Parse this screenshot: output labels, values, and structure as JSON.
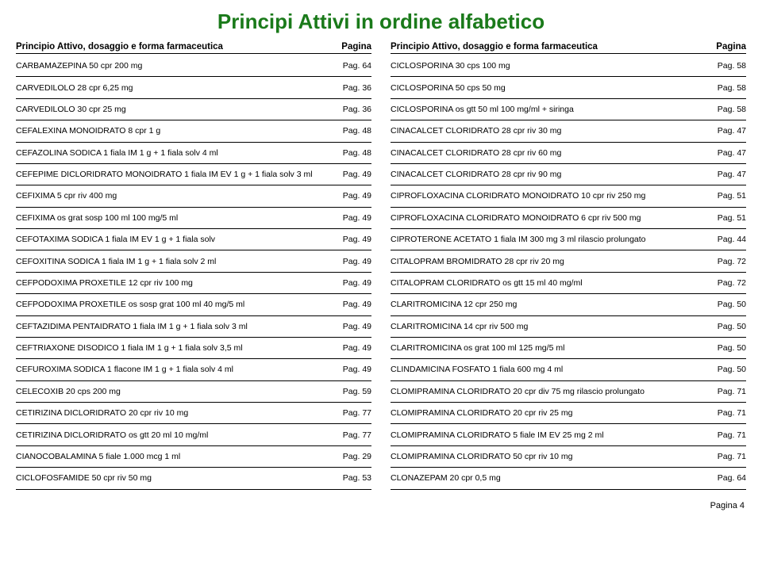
{
  "title": "Principi Attivi in ordine alfabetico",
  "header_left_label": "Principio Attivo, dosaggio e forma farmaceutica",
  "header_right_label": "Pagina",
  "footer": "Pagina 4",
  "colors": {
    "title": "#1a7a1a",
    "text": "#000000",
    "border": "#000000",
    "background": "#ffffff"
  },
  "left_items": [
    {
      "name": "CARBAMAZEPINA 50 cpr 200 mg",
      "page": "Pag. 64"
    },
    {
      "name": "CARVEDILOLO 28 cpr 6,25 mg",
      "page": "Pag. 36"
    },
    {
      "name": "CARVEDILOLO 30 cpr 25 mg",
      "page": "Pag. 36"
    },
    {
      "name": "CEFALEXINA MONOIDRATO 8 cpr 1 g",
      "page": "Pag. 48"
    },
    {
      "name": "CEFAZOLINA SODICA 1 fiala IM 1 g + 1 fiala solv 4 ml",
      "page": "Pag. 48"
    },
    {
      "name": "CEFEPIME DICLORIDRATO MONOIDRATO 1 fiala IM EV 1 g + 1 fiala solv 3 ml",
      "page": "Pag. 49"
    },
    {
      "name": "CEFIXIMA 5 cpr riv 400 mg",
      "page": "Pag. 49"
    },
    {
      "name": "CEFIXIMA os grat sosp 100 ml 100 mg/5 ml",
      "page": "Pag. 49"
    },
    {
      "name": "CEFOTAXIMA SODICA 1 fiala IM EV 1 g + 1 fiala solv",
      "page": "Pag. 49"
    },
    {
      "name": "CEFOXITINA SODICA 1 fiala IM 1 g + 1 fiala solv 2 ml",
      "page": "Pag. 49"
    },
    {
      "name": "CEFPODOXIMA PROXETILE 12 cpr riv 100 mg",
      "page": "Pag. 49"
    },
    {
      "name": "CEFPODOXIMA PROXETILE os sosp grat 100 ml 40 mg/5 ml",
      "page": "Pag. 49"
    },
    {
      "name": "CEFTAZIDIMA PENTAIDRATO 1 fiala IM 1 g + 1 fiala solv 3 ml",
      "page": "Pag. 49"
    },
    {
      "name": "CEFTRIAXONE DISODICO 1 fiala IM 1 g + 1 fiala solv 3,5 ml",
      "page": "Pag. 49"
    },
    {
      "name": "CEFUROXIMA SODICA 1 flacone IM 1 g + 1 fiala solv 4 ml",
      "page": "Pag. 49"
    },
    {
      "name": "CELECOXIB 20 cps 200 mg",
      "page": "Pag. 59"
    },
    {
      "name": "CETIRIZINA DICLORIDRATO 20 cpr riv 10 mg",
      "page": "Pag. 77"
    },
    {
      "name": "CETIRIZINA DICLORIDRATO os gtt 20 ml 10 mg/ml",
      "page": "Pag. 77"
    },
    {
      "name": "CIANOCOBALAMINA 5 fiale 1.000 mcg 1 ml",
      "page": "Pag. 29"
    },
    {
      "name": "CICLOFOSFAMIDE 50 cpr riv 50 mg",
      "page": "Pag. 53"
    }
  ],
  "right_items": [
    {
      "name": "CICLOSPORINA 30 cps 100 mg",
      "page": "Pag. 58"
    },
    {
      "name": "CICLOSPORINA 50 cps 50 mg",
      "page": "Pag. 58"
    },
    {
      "name": "CICLOSPORINA os gtt 50 ml 100 mg/ml + siringa",
      "page": "Pag. 58"
    },
    {
      "name": "CINACALCET CLORIDRATO 28 cpr riv 30 mg",
      "page": "Pag. 47"
    },
    {
      "name": "CINACALCET CLORIDRATO 28 cpr riv 60 mg",
      "page": "Pag. 47"
    },
    {
      "name": "CINACALCET CLORIDRATO 28 cpr riv 90 mg",
      "page": "Pag. 47"
    },
    {
      "name": "CIPROFLOXACINA CLORIDRATO MONOIDRATO 10 cpr riv 250 mg",
      "page": "Pag. 51"
    },
    {
      "name": "CIPROFLOXACINA CLORIDRATO MONOIDRATO 6 cpr riv 500 mg",
      "page": "Pag. 51"
    },
    {
      "name": "CIPROTERONE ACETATO 1 fiala IM 300 mg 3 ml rilascio prolungato",
      "page": "Pag. 44"
    },
    {
      "name": "CITALOPRAM BROMIDRATO 28 cpr riv 20 mg",
      "page": "Pag. 72"
    },
    {
      "name": "CITALOPRAM CLORIDRATO os gtt 15 ml 40 mg/ml",
      "page": "Pag. 72"
    },
    {
      "name": "CLARITROMICINA 12 cpr 250 mg",
      "page": "Pag. 50"
    },
    {
      "name": "CLARITROMICINA 14 cpr riv 500 mg",
      "page": "Pag. 50"
    },
    {
      "name": "CLARITROMICINA os grat 100 ml 125 mg/5 ml",
      "page": "Pag. 50"
    },
    {
      "name": "CLINDAMICINA FOSFATO 1 fiala 600 mg 4 ml",
      "page": "Pag. 50"
    },
    {
      "name": "CLOMIPRAMINA CLORIDRATO 20 cpr div 75 mg rilascio prolungato",
      "page": "Pag. 71"
    },
    {
      "name": "CLOMIPRAMINA CLORIDRATO 20 cpr riv 25 mg",
      "page": "Pag. 71"
    },
    {
      "name": "CLOMIPRAMINA CLORIDRATO 5 fiale IM EV 25 mg 2 ml",
      "page": "Pag. 71"
    },
    {
      "name": "CLOMIPRAMINA CLORIDRATO 50 cpr riv 10 mg",
      "page": "Pag. 71"
    },
    {
      "name": "CLONAZEPAM 20 cpr 0,5 mg",
      "page": "Pag. 64"
    }
  ]
}
